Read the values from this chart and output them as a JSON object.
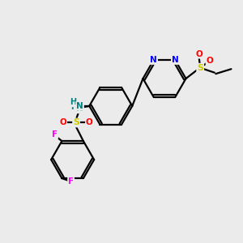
{
  "background_color": "#ebebeb",
  "bond_color": "#000000",
  "atom_colors": {
    "N": "#0000ff",
    "O": "#ff0000",
    "F": "#ff00ff",
    "S": "#cccc00",
    "NH": "#008080",
    "C": "#000000"
  },
  "layout": {
    "xlim": [
      0,
      10
    ],
    "ylim": [
      0,
      10
    ]
  }
}
